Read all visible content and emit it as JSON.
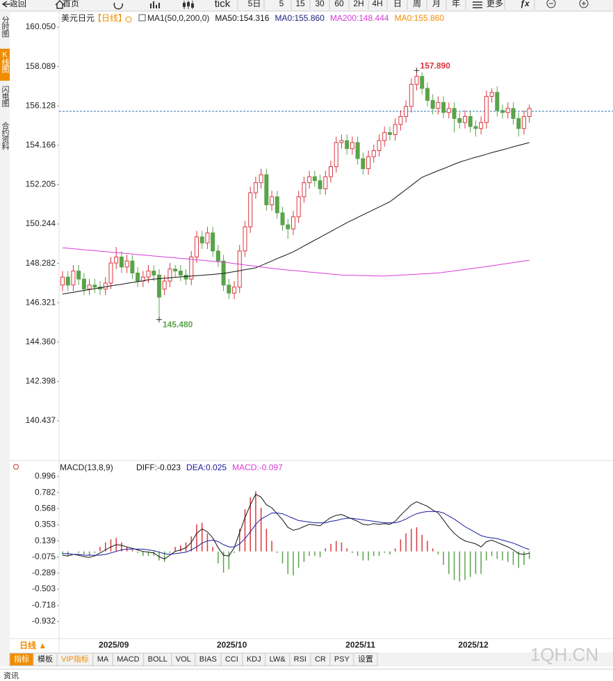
{
  "toolbar": [
    "返回",
    "首页",
    "tick",
    "5日",
    "5",
    "15",
    "30",
    "60",
    "2H",
    "4H",
    "日",
    "周",
    "月",
    "年",
    "更多",
    "ƒx"
  ],
  "side_tabs": [
    "分时图",
    "K线图",
    "闪电图",
    "合约资料"
  ],
  "chart_data": [
    {
      "type": "candlestick",
      "title": "美元日元",
      "period": "【日线】",
      "header": [
        {
          "text": "MA1(50,0,200,0)",
          "color": "#222222"
        },
        {
          "text": "MA0:155.860",
          "color": "#1a237e"
        },
        {
          "text": "MA0:155.860",
          "color": "#f08c00"
        }
      ],
      "ylim": [
        138.53,
        160.78
      ],
      "yticks": [
        {
          "value": 160.05,
          "label": "160.050"
        },
        158.089,
        156.128,
        154.166,
        152.205,
        150.244,
        148.282,
        146.321,
        {
          "value": 144.36,
          "label": "144.360"
        },
        142.398,
        140.437
      ],
      "last_price": 155.86,
      "last_price_color": "#2a6fb0",
      "up_color": "#d9363e",
      "down_color": "#5aa34a",
      "categories": [
        null,
        null,
        null,
        null,
        null,
        null,
        null,
        "2025/09",
        null,
        null,
        null,
        null,
        null,
        null,
        null,
        null,
        null,
        null,
        null,
        null,
        null,
        null,
        null,
        null,
        null,
        null,
        null,
        null,
        null,
        "2025/10",
        null,
        null,
        null,
        null,
        null,
        null,
        null,
        null,
        null,
        null,
        null,
        null,
        null,
        null,
        null,
        null,
        null,
        null,
        null,
        null,
        null,
        null,
        null,
        "2025/11",
        null,
        null,
        null,
        null,
        null,
        null,
        null,
        null,
        null,
        null,
        null,
        null,
        null,
        null,
        null,
        null,
        null,
        null,
        null,
        null,
        "2025/12",
        null,
        null,
        null,
        null,
        null,
        null,
        null,
        null,
        null,
        null,
        null,
        null,
        null
      ],
      "open": [
        147.2,
        147.6,
        147.2,
        147.9,
        147.5,
        147.0,
        147.2,
        147.1,
        147.0,
        147.3,
        148.3,
        148.6,
        148.1,
        148.4,
        147.8,
        147.4,
        147.6,
        147.9,
        147.7,
        147.0,
        147.4,
        148.0,
        147.9,
        147.7,
        147.5,
        148.6,
        149.6,
        149.3,
        149.8,
        148.9,
        148.4,
        147.2,
        146.8,
        147.1,
        148.9,
        150.1,
        151.8,
        152.3,
        152.7,
        151.2,
        151.6,
        150.8,
        150.2,
        150.0,
        150.6,
        151.6,
        152.3,
        152.6,
        152.4,
        152.0,
        152.6,
        153.1,
        154.3,
        154.4,
        154.0,
        154.3,
        153.5,
        153.0,
        153.6,
        153.9,
        154.4,
        154.8,
        154.7,
        155.2,
        155.6,
        156.1,
        157.2,
        157.6,
        157.0,
        156.4,
        156.0,
        156.3,
        155.8,
        156.0,
        155.5,
        155.3,
        155.6,
        155.1,
        155.0,
        155.3,
        156.6,
        156.8,
        155.9,
        155.8,
        156.0,
        155.5,
        155.0,
        155.6
      ],
      "high": [
        147.9,
        147.9,
        148.2,
        148.2,
        147.8,
        147.5,
        147.5,
        147.4,
        147.6,
        148.6,
        149.1,
        148.9,
        148.7,
        148.7,
        148.1,
        147.9,
        148.2,
        148.2,
        148.0,
        147.7,
        148.3,
        148.2,
        148.2,
        148.0,
        148.9,
        149.9,
        149.9,
        150.1,
        150.1,
        149.2,
        148.7,
        147.5,
        147.4,
        149.2,
        150.4,
        152.1,
        152.6,
        153.0,
        153.0,
        151.9,
        151.9,
        151.1,
        150.5,
        150.9,
        151.9,
        152.6,
        152.9,
        152.9,
        152.7,
        152.9,
        153.4,
        154.6,
        154.7,
        154.7,
        154.6,
        154.6,
        153.8,
        153.9,
        154.2,
        154.7,
        155.1,
        155.1,
        155.5,
        155.9,
        156.4,
        157.5,
        157.89,
        157.8,
        157.3,
        156.7,
        156.6,
        156.6,
        156.3,
        156.3,
        155.8,
        155.9,
        155.9,
        155.4,
        155.6,
        156.9,
        157.0,
        157.1,
        156.2,
        156.3,
        156.3,
        155.8,
        155.9,
        156.2
      ],
      "low": [
        146.9,
        146.9,
        146.9,
        147.2,
        146.7,
        146.7,
        146.8,
        146.7,
        146.7,
        147.0,
        148.0,
        147.8,
        147.8,
        147.5,
        147.1,
        147.1,
        147.3,
        147.4,
        145.48,
        146.7,
        147.1,
        147.6,
        147.4,
        147.2,
        147.2,
        148.3,
        149.0,
        149.0,
        148.6,
        148.1,
        146.9,
        146.5,
        146.5,
        146.8,
        148.6,
        149.8,
        151.5,
        152.0,
        150.9,
        150.9,
        150.5,
        149.9,
        149.5,
        149.7,
        150.3,
        151.3,
        152.0,
        152.1,
        151.7,
        151.7,
        152.3,
        152.8,
        154.0,
        153.7,
        153.7,
        153.2,
        152.7,
        152.7,
        153.3,
        153.6,
        154.1,
        154.4,
        154.4,
        154.9,
        155.3,
        155.8,
        156.9,
        156.7,
        156.1,
        155.7,
        155.7,
        155.5,
        155.5,
        154.8,
        155.0,
        155.0,
        154.8,
        154.6,
        154.7,
        155.0,
        156.3,
        155.6,
        155.5,
        155.5,
        155.2,
        154.6,
        154.7,
        155.3
      ],
      "close": [
        147.6,
        147.2,
        147.9,
        147.5,
        147.0,
        147.2,
        147.1,
        147.0,
        147.3,
        148.3,
        148.6,
        148.1,
        148.4,
        147.8,
        147.4,
        147.6,
        147.9,
        147.7,
        146.6,
        147.4,
        148.0,
        147.9,
        147.7,
        147.5,
        148.6,
        149.6,
        149.3,
        149.8,
        148.9,
        148.4,
        147.2,
        146.8,
        147.1,
        148.9,
        150.1,
        151.8,
        152.3,
        152.7,
        151.2,
        151.6,
        150.8,
        150.2,
        150.0,
        150.6,
        151.6,
        152.3,
        152.6,
        152.4,
        152.0,
        152.6,
        153.1,
        154.3,
        154.4,
        154.0,
        154.3,
        153.5,
        153.0,
        153.6,
        153.9,
        154.4,
        154.8,
        154.7,
        155.2,
        155.6,
        156.1,
        157.2,
        157.6,
        157.0,
        156.4,
        156.0,
        156.3,
        155.8,
        156.0,
        155.5,
        155.3,
        155.6,
        155.1,
        155.0,
        155.3,
        156.6,
        156.8,
        155.9,
        155.8,
        156.0,
        155.5,
        155.0,
        155.6,
        156.0
      ],
      "series": [
        {
          "name": "MA50:154.316",
          "color": "#111111",
          "values": [
            146.75,
            146.8,
            146.84,
            146.89,
            146.93,
            146.98,
            147.02,
            147.07,
            147.11,
            147.16,
            147.2,
            147.24,
            147.29,
            147.33,
            147.37,
            147.41,
            147.46,
            147.5,
            147.52,
            147.54,
            147.56,
            147.59,
            147.61,
            147.63,
            147.65,
            147.67,
            147.69,
            147.71,
            147.73,
            147.76,
            147.78,
            147.83,
            147.87,
            147.92,
            147.97,
            148.01,
            148.06,
            148.17,
            148.29,
            148.4,
            148.52,
            148.63,
            148.74,
            148.86,
            149.0,
            149.15,
            149.29,
            149.44,
            149.58,
            149.73,
            149.87,
            150.02,
            150.16,
            150.31,
            150.44,
            150.57,
            150.7,
            150.83,
            150.96,
            151.09,
            151.22,
            151.35,
            151.55,
            151.76,
            151.96,
            152.16,
            152.37,
            152.57,
            152.68,
            152.79,
            152.9,
            153.0,
            153.11,
            153.22,
            153.33,
            153.41,
            153.49,
            153.57,
            153.64,
            153.72,
            153.8,
            153.87,
            153.94,
            154.01,
            154.09,
            154.16,
            154.23,
            154.3
          ]
        },
        {
          "name": "MA200:148.444",
          "color": "#d63cd6",
          "values": [
            149.06,
            149.04,
            149.01,
            148.99,
            148.96,
            148.94,
            148.92,
            148.89,
            148.87,
            148.84,
            148.82,
            148.8,
            148.77,
            148.75,
            148.72,
            148.7,
            148.68,
            148.65,
            148.63,
            148.6,
            148.58,
            148.56,
            148.53,
            148.51,
            148.48,
            148.46,
            148.44,
            148.41,
            148.39,
            148.36,
            148.34,
            148.31,
            148.27,
            148.24,
            148.2,
            148.17,
            148.14,
            148.1,
            148.07,
            148.03,
            148.0,
            147.98,
            147.95,
            147.93,
            147.9,
            147.88,
            147.85,
            147.83,
            147.8,
            147.78,
            147.75,
            147.73,
            147.7,
            147.69,
            147.69,
            147.68,
            147.67,
            147.67,
            147.66,
            147.66,
            147.65,
            147.67,
            147.68,
            147.7,
            147.71,
            147.73,
            147.74,
            147.76,
            147.77,
            147.79,
            147.8,
            147.84,
            147.87,
            147.91,
            147.94,
            147.98,
            148.02,
            148.05,
            148.09,
            148.12,
            148.16,
            148.2,
            148.24,
            148.28,
            148.32,
            148.36,
            148.4,
            148.44
          ]
        }
      ],
      "annotations": [
        {
          "label": "157.890",
          "value": 157.89,
          "color": "#d9363e"
        },
        {
          "label": "145.480",
          "value": 145.48,
          "color": "#5aa34a"
        }
      ]
    },
    {
      "type": "macd",
      "title": "MACD(13,8,9)",
      "ylim": [
        -1.159,
        1.181
      ],
      "yticks": [
        0.996,
        0.782,
        0.568,
        0.353,
        0.139,
        -0.075,
        -0.289,
        -0.503,
        -0.718,
        -0.932
      ],
      "up_color": "#d9363e",
      "down_color": "#5aa34a",
      "series": [
        {
          "name": "DIFF:-0.023",
          "color": "#111111",
          "values": [
            -0.05,
            -0.06,
            -0.04,
            -0.05,
            -0.07,
            -0.08,
            -0.06,
            -0.02,
            0.02,
            0.06,
            0.09,
            0.08,
            0.06,
            0.04,
            0.02,
            0.0,
            -0.01,
            -0.02,
            -0.07,
            -0.1,
            -0.05,
            0.0,
            0.02,
            0.05,
            0.12,
            0.24,
            0.3,
            0.26,
            0.18,
            0.05,
            -0.05,
            -0.06,
            0.05,
            0.25,
            0.45,
            0.62,
            0.76,
            0.72,
            0.62,
            0.58,
            0.5,
            0.42,
            0.32,
            0.28,
            0.3,
            0.33,
            0.36,
            0.35,
            0.34,
            0.4,
            0.45,
            0.48,
            0.49,
            0.46,
            0.43,
            0.4,
            0.36,
            0.35,
            0.37,
            0.36,
            0.37,
            0.36,
            0.4,
            0.48,
            0.55,
            0.62,
            0.66,
            0.63,
            0.6,
            0.55,
            0.51,
            0.42,
            0.32,
            0.24,
            0.18,
            0.14,
            0.12,
            0.1,
            0.06,
            0.13,
            0.15,
            0.12,
            0.09,
            0.06,
            0.02,
            -0.03,
            -0.04,
            -0.023
          ]
        },
        {
          "name": "DEA:0.025",
          "color": "#1a1aa0",
          "values": [
            -0.03,
            -0.03,
            -0.04,
            -0.04,
            -0.05,
            -0.05,
            -0.05,
            -0.05,
            -0.04,
            -0.02,
            0.0,
            0.02,
            0.03,
            0.03,
            0.03,
            0.03,
            0.02,
            0.01,
            -0.01,
            -0.03,
            -0.04,
            -0.03,
            -0.02,
            -0.01,
            0.02,
            0.06,
            0.11,
            0.14,
            0.15,
            0.13,
            0.09,
            0.06,
            0.06,
            0.1,
            0.17,
            0.26,
            0.36,
            0.43,
            0.47,
            0.51,
            0.51,
            0.5,
            0.47,
            0.44,
            0.41,
            0.4,
            0.39,
            0.38,
            0.38,
            0.38,
            0.4,
            0.41,
            0.43,
            0.44,
            0.44,
            0.43,
            0.42,
            0.41,
            0.4,
            0.39,
            0.38,
            0.38,
            0.38,
            0.4,
            0.43,
            0.47,
            0.5,
            0.52,
            0.53,
            0.53,
            0.53,
            0.51,
            0.47,
            0.43,
            0.38,
            0.33,
            0.29,
            0.25,
            0.21,
            0.19,
            0.18,
            0.17,
            0.15,
            0.13,
            0.11,
            0.08,
            0.05,
            0.025
          ]
        },
        {
          "name": "MACD:-0.097",
          "color": "#d63cd6",
          "histogram": true,
          "values": [
            -0.04,
            -0.06,
            0.0,
            -0.02,
            -0.04,
            -0.06,
            -0.02,
            0.06,
            0.12,
            0.16,
            0.18,
            0.12,
            0.06,
            0.02,
            -0.02,
            -0.06,
            -0.06,
            -0.06,
            -0.12,
            -0.14,
            -0.02,
            0.06,
            0.08,
            0.12,
            0.2,
            0.36,
            0.38,
            0.24,
            0.06,
            -0.16,
            -0.28,
            -0.24,
            -0.02,
            0.3,
            0.56,
            0.72,
            0.8,
            0.58,
            0.3,
            0.14,
            -0.02,
            -0.16,
            -0.3,
            -0.32,
            -0.22,
            -0.14,
            -0.06,
            -0.06,
            -0.08,
            0.04,
            0.1,
            0.14,
            0.12,
            0.04,
            -0.02,
            -0.06,
            -0.12,
            -0.12,
            -0.06,
            -0.06,
            -0.02,
            -0.04,
            0.04,
            0.16,
            0.24,
            0.3,
            0.32,
            0.22,
            0.14,
            0.04,
            -0.04,
            -0.18,
            -0.3,
            -0.38,
            -0.4,
            -0.38,
            -0.34,
            -0.3,
            -0.3,
            -0.12,
            -0.06,
            -0.1,
            -0.12,
            -0.14,
            -0.18,
            -0.22,
            -0.18,
            -0.097
          ]
        }
      ]
    }
  ],
  "bottom": {
    "period": "日线 ▲",
    "tabs": [
      "指标",
      "模板",
      "VIP指标",
      "MA",
      "MACD",
      "BOLL",
      "VOL",
      "BIAS",
      "CCI",
      "KDJ",
      "LW&",
      "RSI",
      "CR",
      "PSY",
      "设置"
    ],
    "news": "资讯",
    "watermark": "1QH.CN"
  }
}
